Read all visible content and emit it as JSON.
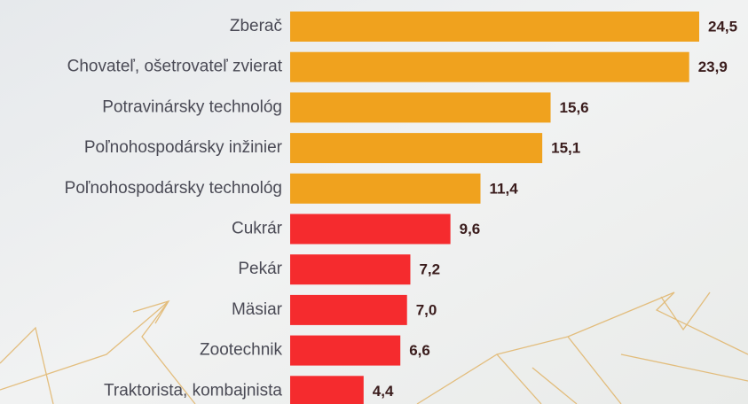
{
  "chart_data": {
    "type": "bar",
    "orientation": "horizontal",
    "categories": [
      "Zberač",
      "Chovateľ, ošetrovateľ zvierat",
      "Potravinársky technológ",
      "Poľnohospodársky inžinier",
      "Poľnohospodársky technológ",
      "Cukrár",
      "Pekár",
      "Mäsiar",
      "Zootechnik",
      "Traktorista, kombajnista"
    ],
    "values": [
      24.5,
      23.9,
      15.6,
      15.1,
      11.4,
      9.6,
      7.2,
      7.0,
      6.6,
      4.4
    ],
    "value_labels": [
      "24,5",
      "23,9",
      "15,6",
      "15,1",
      "11,4",
      "9,6",
      "7,2",
      "7,0",
      "6,6",
      "4,4"
    ],
    "colors": [
      "#f0a21e",
      "#f0a21e",
      "#f0a21e",
      "#f0a21e",
      "#f0a21e",
      "#f52b2e",
      "#f52b2e",
      "#f52b2e",
      "#f52b2e",
      "#f52b2e"
    ]
  }
}
